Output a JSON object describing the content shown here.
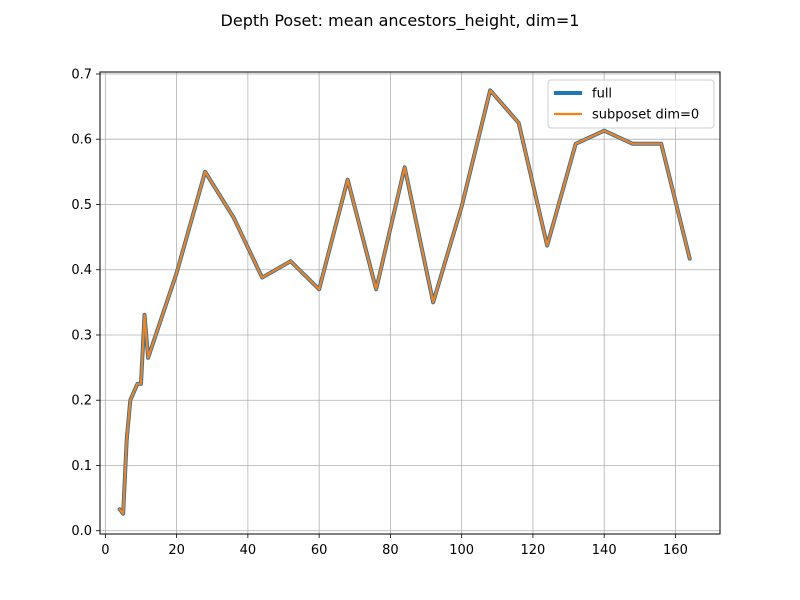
{
  "chart_data": {
    "type": "line",
    "title": "Depth Poset: mean ancestors_height, dim=1",
    "xlabel": "",
    "ylabel": "",
    "xlim": [
      -1.5,
      172.5
    ],
    "ylim": [
      -0.005,
      0.703
    ],
    "xticks": [
      0,
      20,
      40,
      60,
      80,
      100,
      120,
      140,
      160
    ],
    "yticks": [
      0.0,
      0.1,
      0.2,
      0.3,
      0.4,
      0.5,
      0.6,
      0.7
    ],
    "xtick_labels": [
      "0",
      "20",
      "40",
      "60",
      "80",
      "100",
      "120",
      "140",
      "160"
    ],
    "ytick_labels": [
      "0.0",
      "0.1",
      "0.2",
      "0.3",
      "0.4",
      "0.5",
      "0.6",
      "0.7"
    ],
    "grid": true,
    "legend_position": "top-right",
    "x": [
      4,
      5,
      6,
      7,
      9,
      10,
      11,
      12,
      20,
      28,
      36,
      44,
      52,
      60,
      68,
      76,
      84,
      92,
      100,
      108,
      116,
      124,
      132,
      140,
      148,
      156,
      164
    ],
    "series": [
      {
        "name": "full",
        "color": "#1f77b4",
        "values": [
          0.033,
          0.026,
          0.14,
          0.2,
          0.225,
          0.225,
          0.331,
          0.265,
          0.395,
          0.55,
          0.48,
          0.388,
          0.413,
          0.37,
          0.538,
          0.37,
          0.557,
          0.35,
          0.497,
          0.675,
          0.625,
          0.437,
          0.593,
          0.613,
          0.593,
          0.593,
          0.417
        ]
      },
      {
        "name": "subposet dim=0",
        "color": "#ff7f0e",
        "values": [
          0.033,
          0.026,
          0.14,
          0.2,
          0.225,
          0.225,
          0.331,
          0.265,
          0.395,
          0.55,
          0.48,
          0.388,
          0.413,
          0.37,
          0.538,
          0.37,
          0.557,
          0.35,
          0.497,
          0.675,
          0.625,
          0.437,
          0.593,
          0.613,
          0.593,
          0.593,
          0.417
        ]
      }
    ]
  }
}
